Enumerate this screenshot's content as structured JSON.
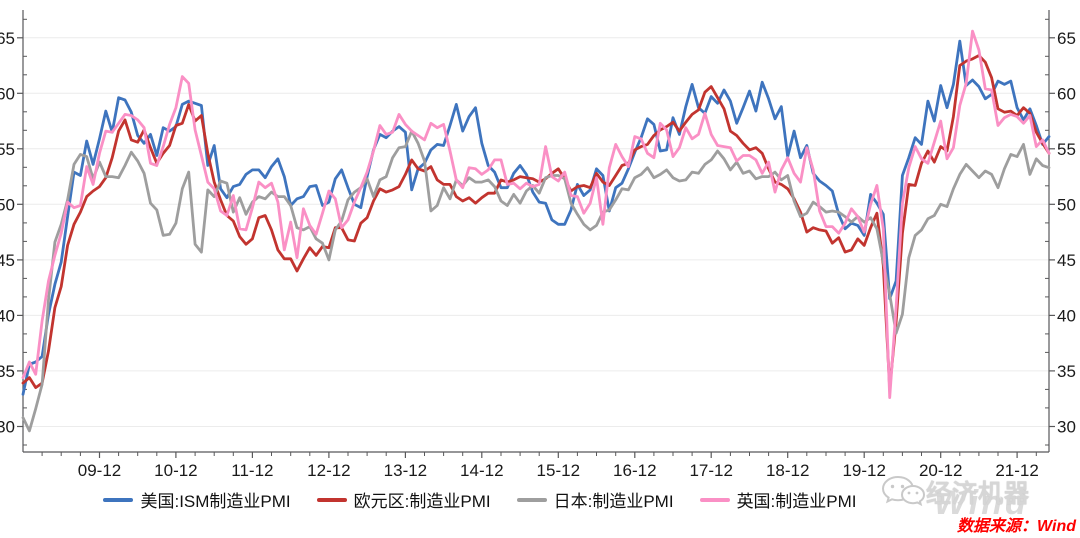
{
  "chart_data": {
    "type": "line",
    "title": "",
    "xlabel": "",
    "ylabel": "",
    "ylim": [
      27.7,
      67.5
    ],
    "yticks": [
      30,
      35,
      40,
      45,
      50,
      55,
      60,
      65
    ],
    "grid": "horizontal",
    "legend_position": "bottom",
    "xtick_labels": [
      "09-12",
      "10-12",
      "11-12",
      "12-12",
      "13-12",
      "14-12",
      "15-12",
      "16-12",
      "17-12",
      "18-12",
      "19-12",
      "20-12",
      "21-12"
    ],
    "x": [
      "2008-12",
      "2009-01",
      "2009-02",
      "2009-03",
      "2009-04",
      "2009-05",
      "2009-06",
      "2009-07",
      "2009-08",
      "2009-09",
      "2009-10",
      "2009-11",
      "2009-12",
      "2010-01",
      "2010-02",
      "2010-03",
      "2010-04",
      "2010-05",
      "2010-06",
      "2010-07",
      "2010-08",
      "2010-09",
      "2010-10",
      "2010-11",
      "2010-12",
      "2011-01",
      "2011-02",
      "2011-03",
      "2011-04",
      "2011-05",
      "2011-06",
      "2011-07",
      "2011-08",
      "2011-09",
      "2011-10",
      "2011-11",
      "2011-12",
      "2012-01",
      "2012-02",
      "2012-03",
      "2012-04",
      "2012-05",
      "2012-06",
      "2012-07",
      "2012-08",
      "2012-09",
      "2012-10",
      "2012-11",
      "2012-12",
      "2013-01",
      "2013-02",
      "2013-03",
      "2013-04",
      "2013-05",
      "2013-06",
      "2013-07",
      "2013-08",
      "2013-09",
      "2013-10",
      "2013-11",
      "2013-12",
      "2014-01",
      "2014-02",
      "2014-03",
      "2014-04",
      "2014-05",
      "2014-06",
      "2014-07",
      "2014-08",
      "2014-09",
      "2014-10",
      "2014-11",
      "2014-12",
      "2015-01",
      "2015-02",
      "2015-03",
      "2015-04",
      "2015-05",
      "2015-06",
      "2015-07",
      "2015-08",
      "2015-09",
      "2015-10",
      "2015-11",
      "2015-12",
      "2016-01",
      "2016-02",
      "2016-03",
      "2016-04",
      "2016-05",
      "2016-06",
      "2016-07",
      "2016-08",
      "2016-09",
      "2016-10",
      "2016-11",
      "2016-12",
      "2017-01",
      "2017-02",
      "2017-03",
      "2017-04",
      "2017-05",
      "2017-06",
      "2017-07",
      "2017-08",
      "2017-09",
      "2017-10",
      "2017-11",
      "2017-12",
      "2018-01",
      "2018-02",
      "2018-03",
      "2018-04",
      "2018-05",
      "2018-06",
      "2018-07",
      "2018-08",
      "2018-09",
      "2018-10",
      "2018-11",
      "2018-12",
      "2019-01",
      "2019-02",
      "2019-03",
      "2019-04",
      "2019-05",
      "2019-06",
      "2019-07",
      "2019-08",
      "2019-09",
      "2019-10",
      "2019-11",
      "2019-12",
      "2020-01",
      "2020-02",
      "2020-03",
      "2020-04",
      "2020-05",
      "2020-06",
      "2020-07",
      "2020-08",
      "2020-09",
      "2020-10",
      "2020-11",
      "2020-12",
      "2021-01",
      "2021-02",
      "2021-03",
      "2021-04",
      "2021-05",
      "2021-06",
      "2021-07",
      "2021-08",
      "2021-09",
      "2021-10",
      "2021-11",
      "2021-12",
      "2022-01",
      "2022-02",
      "2022-03",
      "2022-04",
      "2022-05"
    ],
    "series": [
      {
        "name": "美国:ISM制造业PMI",
        "color": "#3E74BE",
        "values": [
          32.9,
          35.6,
          35.8,
          36.3,
          40.1,
          42.8,
          44.8,
          48.9,
          52.9,
          52.6,
          55.7,
          53.6,
          55.9,
          58.4,
          56.5,
          59.6,
          59.4,
          58.3,
          56.2,
          55.5,
          56.3,
          54.4,
          56.9,
          56.6,
          57.0,
          59.0,
          59.3,
          59.1,
          58.9,
          53.5,
          55.3,
          51.4,
          50.6,
          51.6,
          51.8,
          52.7,
          53.1,
          53.1,
          52.4,
          53.4,
          54.1,
          52.5,
          49.9,
          50.5,
          50.7,
          51.6,
          51.7,
          49.9,
          50.2,
          52.3,
          53.1,
          51.5,
          50.0,
          49.7,
          52.5,
          54.9,
          56.3,
          56.0,
          56.6,
          57.0,
          56.5,
          51.3,
          53.2,
          53.7,
          54.9,
          55.4,
          55.3,
          57.1,
          59.0,
          56.6,
          57.9,
          58.7,
          55.5,
          53.5,
          52.9,
          51.5,
          51.5,
          52.8,
          53.5,
          52.7,
          51.1,
          50.2,
          50.1,
          48.6,
          48.2,
          48.2,
          49.5,
          51.8,
          50.8,
          51.3,
          53.2,
          52.6,
          49.4,
          51.5,
          51.9,
          53.2,
          54.7,
          56.0,
          57.7,
          57.2,
          54.8,
          54.9,
          57.8,
          56.3,
          58.8,
          60.8,
          58.7,
          58.2,
          59.7,
          59.1,
          60.3,
          59.3,
          57.3,
          58.7,
          60.2,
          58.4,
          61.0,
          59.5,
          57.7,
          58.8,
          54.3,
          56.6,
          54.2,
          55.3,
          52.8,
          52.1,
          51.7,
          51.2,
          49.1,
          47.8,
          48.3,
          48.1,
          47.2,
          50.9,
          50.1,
          49.1,
          41.5,
          43.1,
          52.6,
          54.2,
          56.0,
          55.4,
          59.3,
          57.5,
          60.7,
          58.7,
          60.8,
          64.7,
          60.7,
          61.2,
          60.6,
          59.5,
          59.9,
          61.1,
          60.8,
          61.1,
          58.7,
          57.6,
          58.6,
          57.1,
          55.4,
          56.1
        ]
      },
      {
        "name": "欧元区:制造业PMI",
        "color": "#C2342F",
        "values": [
          33.9,
          34.4,
          33.5,
          33.9,
          36.8,
          40.7,
          42.6,
          46.3,
          48.2,
          49.3,
          50.7,
          51.2,
          51.6,
          52.4,
          54.2,
          56.6,
          57.6,
          55.8,
          55.6,
          56.7,
          55.1,
          53.7,
          54.6,
          55.3,
          57.1,
          57.3,
          59.0,
          57.5,
          58.0,
          54.6,
          52.0,
          50.4,
          49.0,
          48.5,
          47.1,
          46.4,
          46.9,
          48.8,
          49.0,
          47.7,
          45.9,
          45.1,
          45.1,
          44.0,
          45.1,
          46.1,
          45.4,
          46.2,
          46.1,
          47.9,
          47.9,
          46.8,
          46.7,
          48.3,
          48.8,
          50.3,
          51.4,
          51.1,
          51.3,
          51.6,
          52.7,
          54.0,
          53.2,
          53.0,
          53.4,
          52.2,
          51.8,
          51.8,
          50.7,
          50.3,
          50.6,
          50.1,
          50.6,
          51.0,
          51.0,
          52.2,
          52.0,
          52.2,
          52.5,
          52.4,
          52.3,
          52.0,
          52.3,
          52.8,
          53.2,
          52.3,
          51.2,
          51.6,
          51.7,
          51.5,
          52.8,
          52.0,
          51.7,
          52.6,
          53.5,
          53.7,
          54.9,
          55.2,
          55.4,
          56.2,
          56.7,
          57.0,
          57.4,
          56.6,
          57.4,
          58.1,
          58.5,
          60.1,
          60.6,
          59.6,
          58.6,
          56.6,
          56.2,
          55.5,
          54.9,
          55.1,
          54.6,
          53.2,
          52.0,
          51.8,
          51.4,
          50.5,
          49.3,
          47.5,
          47.9,
          47.7,
          47.6,
          46.5,
          47.0,
          45.7,
          45.9,
          46.9,
          46.3,
          47.9,
          49.2,
          44.5,
          33.4,
          39.4,
          47.4,
          51.8,
          51.7,
          53.7,
          54.8,
          53.8,
          55.2,
          54.8,
          57.9,
          62.5,
          62.9,
          63.1,
          63.4,
          62.8,
          61.4,
          58.6,
          58.3,
          58.4,
          58.0,
          58.7,
          58.2,
          56.5,
          55.5,
          54.6
        ]
      },
      {
        "name": "日本:制造业PMI",
        "color": "#9E9E9E",
        "values": [
          30.8,
          29.6,
          31.6,
          33.8,
          41.4,
          46.6,
          48.2,
          50.4,
          53.6,
          54.5,
          54.3,
          52.3,
          53.8,
          52.5,
          52.5,
          52.4,
          53.5,
          54.7,
          53.9,
          52.8,
          50.1,
          49.5,
          47.2,
          47.3,
          48.3,
          51.4,
          52.9,
          46.4,
          45.7,
          51.3,
          50.7,
          52.1,
          51.9,
          49.3,
          50.6,
          49.1,
          50.2,
          50.7,
          50.5,
          51.1,
          50.7,
          50.7,
          49.9,
          47.9,
          47.7,
          48.0,
          46.9,
          46.5,
          45.0,
          47.7,
          48.5,
          50.4,
          51.1,
          51.5,
          52.3,
          50.7,
          52.2,
          52.5,
          54.2,
          55.1,
          55.2,
          56.6,
          55.5,
          53.9,
          49.4,
          49.9,
          51.5,
          50.5,
          52.2,
          51.7,
          52.4,
          52.0,
          52.0,
          52.2,
          51.6,
          50.3,
          49.9,
          50.9,
          50.1,
          51.2,
          51.7,
          51.0,
          52.4,
          52.6,
          52.6,
          52.3,
          50.1,
          49.1,
          48.2,
          47.7,
          48.1,
          49.3,
          49.5,
          50.4,
          51.4,
          51.3,
          52.4,
          52.7,
          53.3,
          52.4,
          52.7,
          53.1,
          52.4,
          52.1,
          52.2,
          52.9,
          52.8,
          53.6,
          54.0,
          54.8,
          54.1,
          53.1,
          53.8,
          52.8,
          53.0,
          52.3,
          52.5,
          52.5,
          52.9,
          52.2,
          52.6,
          50.3,
          48.9,
          49.2,
          50.2,
          49.8,
          49.3,
          49.4,
          49.3,
          48.9,
          48.4,
          48.9,
          48.4,
          48.8,
          47.8,
          44.8,
          41.9,
          38.4,
          40.1,
          45.2,
          47.2,
          47.7,
          48.7,
          49.0,
          50.0,
          49.8,
          51.4,
          52.7,
          53.6,
          53.0,
          52.4,
          53.0,
          52.7,
          51.5,
          53.2,
          54.5,
          54.3,
          55.4,
          52.7,
          54.1,
          53.5,
          53.3
        ]
      },
      {
        "name": "英国:制造业PMI",
        "color": "#FA90C5",
        "values": [
          34.4,
          35.8,
          34.7,
          39.5,
          43.1,
          45.4,
          47.4,
          50.2,
          49.7,
          49.9,
          53.4,
          51.8,
          54.6,
          56.6,
          56.5,
          57.3,
          58.1,
          58.0,
          57.6,
          56.9,
          53.7,
          53.5,
          55.2,
          57.2,
          58.7,
          61.5,
          60.9,
          56.7,
          54.4,
          52.0,
          51.4,
          49.4,
          49.0,
          50.8,
          47.8,
          47.7,
          49.7,
          52.0,
          51.5,
          51.9,
          50.2,
          45.9,
          48.4,
          45.2,
          49.6,
          48.1,
          47.3,
          49.2,
          51.2,
          50.5,
          47.9,
          48.6,
          50.2,
          51.5,
          52.9,
          54.8,
          57.1,
          56.3,
          56.5,
          58.1,
          57.2,
          56.6,
          56.2,
          55.8,
          57.3,
          56.9,
          57.2,
          54.8,
          52.2,
          51.5,
          53.3,
          53.2,
          52.7,
          53.1,
          54.0,
          54.0,
          51.8,
          51.9,
          51.4,
          51.9,
          51.6,
          51.8,
          55.2,
          52.5,
          52.1,
          52.9,
          50.8,
          50.7,
          49.2,
          50.1,
          52.4,
          48.2,
          53.3,
          55.4,
          54.3,
          53.4,
          56.1,
          55.9,
          54.6,
          54.2,
          57.3,
          56.7,
          54.3,
          55.1,
          56.9,
          55.9,
          56.3,
          58.2,
          56.3,
          55.3,
          55.2,
          55.1,
          53.9,
          54.4,
          54.4,
          54.0,
          52.8,
          53.8,
          51.1,
          53.1,
          54.2,
          52.8,
          52.0,
          55.1,
          53.1,
          49.4,
          48.0,
          48.0,
          47.4,
          48.3,
          49.6,
          48.9,
          47.5,
          50.0,
          51.7,
          47.8,
          32.6,
          40.7,
          50.1,
          53.3,
          55.2,
          54.1,
          53.7,
          55.6,
          57.5,
          54.1,
          55.1,
          58.9,
          60.9,
          65.6,
          63.9,
          60.4,
          60.3,
          57.1,
          57.8,
          58.1,
          57.9,
          57.3,
          58.0,
          55.2,
          55.8,
          54.6
        ]
      }
    ]
  },
  "watermark": {
    "brand": "经济机器",
    "big": "Wind"
  },
  "source": {
    "text": "数据来源：Wind",
    "color": "#FE0000"
  },
  "colors": {
    "grid": "#ececec",
    "axis": "#58585a",
    "tick_label": "#1a1a1a",
    "watermark_gray": "#d6d6d6"
  }
}
